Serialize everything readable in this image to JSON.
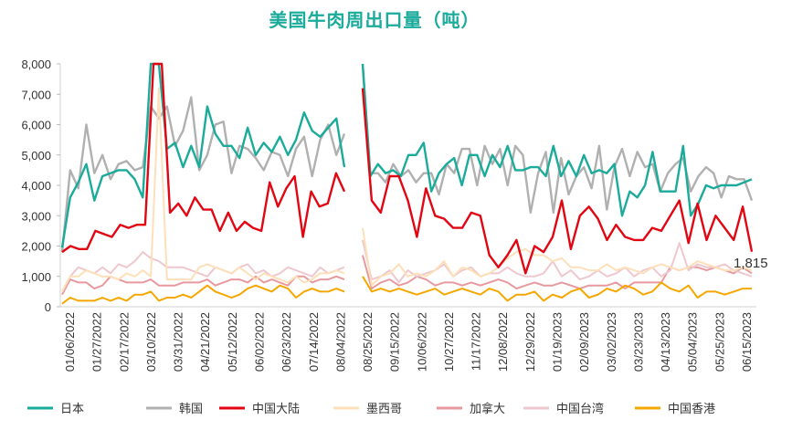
{
  "chart_data": {
    "type": "line",
    "title": "美国牛肉周出口量（吨）",
    "ylim": [
      0,
      8000
    ],
    "yticks": [
      "0",
      "1,000",
      "2,000",
      "3,000",
      "4,000",
      "5,000",
      "6,000",
      "7,000",
      "8,000"
    ],
    "xtick_labels": [
      "01/06/2022",
      "01/27/2022",
      "02/17/2022",
      "03/10/2022",
      "03/31/2022",
      "04/21/2022",
      "05/12/2022",
      "06/02/2022",
      "06/23/2022",
      "07/14/2022",
      "08/04/2022",
      "08/25/2022",
      "09/15/2022",
      "10/06/2022",
      "10/27/2022",
      "11/17/2022",
      "12/08/2022",
      "12/29/2022",
      "01/19/2023",
      "02/09/2023",
      "03/02/2023",
      "03/23/2023",
      "04/13/2023",
      "05/04/2023",
      "05/25/2023",
      "06/15/2023"
    ],
    "grid": false,
    "legend_position": "bottom",
    "annotation": "1,815",
    "series": [
      {
        "name": "日本",
        "color": "#1aab9b",
        "segments": [
          [
            1950,
            3600,
            4100,
            4700,
            3500,
            4300,
            4400,
            4500,
            4500,
            4200,
            3600,
            8400,
            8300,
            5200,
            5400,
            4600,
            5300,
            4600,
            6600,
            5700,
            5300,
            5300,
            4900,
            5900,
            5000,
            5400,
            5100,
            5600,
            5000,
            5500,
            6400,
            5800,
            5600,
            5900,
            6200,
            4600
          ],
          [
            8000,
            4300,
            4700,
            4400,
            4500,
            4300,
            5000,
            5000,
            5400,
            3800,
            4400,
            4700,
            4900,
            4000,
            5000,
            5000,
            4300,
            5000,
            4600,
            5300,
            4500,
            4500,
            4600,
            4600,
            4300,
            5300,
            4300,
            4800,
            4300,
            5000,
            4400,
            4500,
            4400,
            4700,
            3000,
            3800,
            3600,
            4000,
            5100,
            3800,
            3800,
            3800,
            5300,
            3000,
            3400,
            4000,
            3900,
            4000,
            4000,
            4000,
            4100,
            4200
          ]
        ]
      },
      {
        "name": "韩国",
        "color": "#b0b0b0",
        "segments": [
          [
            1800,
            4500,
            3900,
            6000,
            4400,
            5000,
            4200,
            4700,
            4800,
            4500,
            4600,
            6600,
            6200,
            6600,
            5300,
            5800,
            6900,
            4500,
            5000,
            6000,
            6100,
            4400,
            5300,
            5200,
            4900,
            4500,
            5100,
            5000,
            4300,
            5200,
            5600,
            4300,
            5500,
            6000,
            5000,
            5700
          ],
          [
            8000,
            4400,
            4400,
            4100,
            4700,
            4300,
            4500,
            4100,
            4400,
            4400,
            3700,
            4700,
            4400,
            5200,
            5200,
            4000,
            5300,
            4700,
            5200,
            4000,
            5300,
            5000,
            3100,
            4400,
            5100,
            3100,
            4900,
            3700,
            4300,
            4600,
            3900,
            5300,
            3200,
            4600,
            5200,
            4300,
            5100,
            4600,
            4700,
            3800,
            4400,
            4700,
            4900,
            3800,
            4300,
            4600,
            4400,
            3600,
            4300,
            4200,
            4200,
            3500
          ]
        ]
      },
      {
        "name": "中国大陆",
        "color": "#e20612",
        "segments": [
          [
            1800,
            2000,
            1900,
            1900,
            2500,
            2400,
            2300,
            2700,
            2600,
            2700,
            2700,
            8000,
            8000,
            3100,
            3400,
            3000,
            3600,
            3200,
            3200,
            2500,
            3100,
            2500,
            2800,
            2600,
            2500,
            4100,
            3300,
            3900,
            4300,
            2300,
            3800,
            3300,
            3400,
            4400,
            3800
          ],
          [
            7200,
            3500,
            3100,
            4300,
            4300,
            3500,
            2300,
            3900,
            3000,
            2900,
            2600,
            2600,
            3100,
            3000,
            1700,
            1300,
            1700,
            2200,
            1100,
            2000,
            1800,
            2300,
            3500,
            1900,
            3000,
            3300,
            2900,
            2200,
            2700,
            2300,
            2200,
            2200,
            2600,
            2500,
            3000,
            3500,
            2100,
            3400,
            2200,
            3000,
            2600,
            2200,
            3300,
            1815
          ]
        ]
      },
      {
        "name": "墨西哥",
        "color": "#fde0b9",
        "segments": [
          [
            500,
            1000,
            1000,
            1200,
            1100,
            1000,
            1000,
            900,
            1100,
            1000,
            1200,
            1000,
            7200,
            900,
            900,
            900,
            900,
            1300,
            1400,
            1300,
            1200,
            1100,
            1300,
            1100,
            900,
            1100,
            1000,
            900,
            800,
            1000,
            800,
            900,
            1100,
            1100,
            1200,
            1100
          ],
          [
            2600,
            700,
            1000,
            1100,
            1400,
            1000,
            1100,
            1000,
            1200,
            1500,
            1000,
            1300,
            1200,
            1000,
            1100,
            1300,
            1600,
            1800,
            1900,
            1700,
            1700,
            1500,
            1600,
            1300,
            1300,
            1200,
            1200,
            1400,
            1200,
            1300,
            1200,
            1100,
            1300,
            1400,
            1300,
            1200,
            1300,
            1500,
            1400,
            1300,
            1200,
            1200,
            1300,
            1200
          ]
        ]
      },
      {
        "name": "加拿大",
        "color": "#e8999e",
        "segments": [
          [
            400,
            900,
            800,
            800,
            600,
            700,
            1000,
            900,
            800,
            800,
            800,
            900,
            700,
            700,
            700,
            800,
            800,
            800,
            900,
            700,
            800,
            900,
            900,
            800,
            1000,
            800,
            900,
            800,
            700,
            1000,
            1000,
            800,
            900,
            900,
            1000,
            900
          ],
          [
            1700,
            600,
            800,
            900,
            700,
            800,
            1000,
            900,
            700,
            800,
            800,
            700,
            800,
            700,
            800,
            900,
            800,
            600,
            700,
            800,
            700,
            700,
            800,
            700,
            600,
            700,
            700,
            700,
            800,
            600,
            800,
            800,
            800,
            800,
            1300,
            1200,
            1300,
            1300,
            1200,
            1300,
            1200,
            1100,
            1300,
            1100
          ]
        ]
      },
      {
        "name": "中国台湾",
        "color": "#efc7cf",
        "segments": [
          [
            500,
            1000,
            1300,
            1200,
            1100,
            1300,
            1100,
            1400,
            1300,
            1500,
            1800,
            1600,
            1500,
            1300,
            1300,
            1300,
            1200,
            1100,
            1000,
            1300,
            1200,
            1100,
            1300,
            1400,
            1100,
            1200,
            1000,
            1100,
            1300,
            1200,
            1100,
            1000,
            1300,
            1100,
            1200,
            1300
          ],
          [
            2200,
            900,
            1000,
            1200,
            800,
            1200,
            1000,
            1100,
            1200,
            1400,
            1000,
            1200,
            1300,
            1000,
            1100,
            1100,
            1300,
            1100,
            1000,
            1000,
            1100,
            1500,
            1000,
            1200,
            900,
            1000,
            1200,
            1000,
            1100,
            1300,
            1000,
            1200,
            1300,
            1000,
            1200,
            2100,
            1200,
            1400,
            1300,
            1300,
            1400,
            1200,
            1100,
            1000
          ]
        ]
      },
      {
        "name": "中国香港",
        "color": "#f5a700",
        "segments": [
          [
            100,
            300,
            200,
            200,
            200,
            300,
            200,
            300,
            200,
            400,
            400,
            500,
            200,
            300,
            300,
            400,
            300,
            500,
            700,
            500,
            400,
            300,
            400,
            600,
            700,
            600,
            500,
            700,
            600,
            300,
            500,
            600,
            500,
            500,
            600,
            500
          ],
          [
            1000,
            500,
            600,
            500,
            600,
            500,
            400,
            500,
            600,
            400,
            500,
            600,
            500,
            400,
            600,
            500,
            200,
            400,
            400,
            500,
            200,
            400,
            300,
            500,
            600,
            300,
            400,
            600,
            500,
            700,
            600,
            400,
            500,
            800,
            600,
            500,
            700,
            300,
            500,
            500,
            400,
            500,
            600,
            600
          ]
        ]
      }
    ]
  }
}
